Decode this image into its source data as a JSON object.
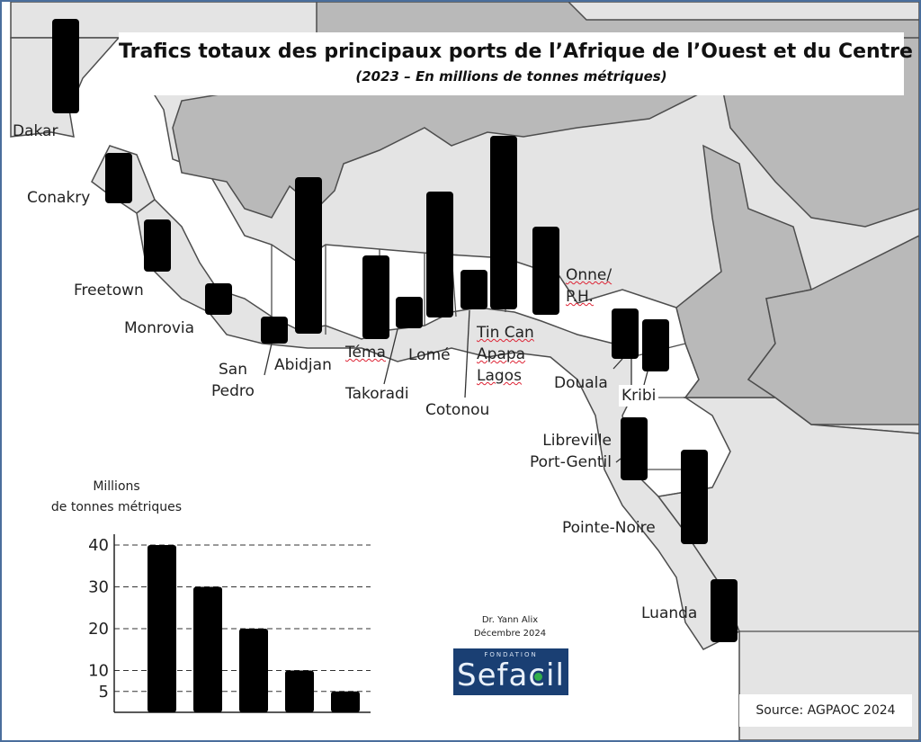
{
  "chart_data": {
    "type": "bar",
    "title": "Trafics totaux des principaux ports de l’Afrique de l’Ouest et du Centre",
    "subtitle": "(2023 – En millions de tonnes métriques)",
    "ports": [
      {
        "label": "Dakar",
        "value": 22.5
      },
      {
        "label": "Conakry",
        "value": 12
      },
      {
        "label": "Freetown",
        "value": 12.5
      },
      {
        "label": "Monrovia",
        "value": 7.5
      },
      {
        "label": "San\nPedro",
        "value": 6.5
      },
      {
        "label": "Abidjan",
        "value": 37.5
      },
      {
        "label": "Téma",
        "value": 20
      },
      {
        "label": "Takoradi",
        "value": 7.5
      },
      {
        "label": "Lomé",
        "value": 30
      },
      {
        "label": "Cotonou",
        "value": 9.5
      },
      {
        "label": "Tin Can\nApapa\nLagos",
        "value": 41.5
      },
      {
        "label": "Onne/\nP.H.",
        "value": 21
      },
      {
        "label": "Douala",
        "value": 12
      },
      {
        "label": "Kribi",
        "value": 12.5
      },
      {
        "label": "Libreville\nPort-Gentil",
        "value": 15
      },
      {
        "label": "Pointe-Noire",
        "value": 22.5
      },
      {
        "label": "Luanda",
        "value": 15
      }
    ],
    "legend_scale": {
      "ylabel": "Millions\nde tonnes métriques",
      "ticks": [
        5,
        10,
        20,
        30,
        40
      ],
      "bars": [
        40,
        30,
        20,
        10,
        5
      ],
      "grid": "dashed"
    }
  },
  "credit": {
    "author": "Dr. Yann Alix",
    "date": "Décembre 2024"
  },
  "logo": {
    "top_text": "FONDATION",
    "name": "Sefacil"
  },
  "source": "Source: AGPAOC 2024",
  "colors": {
    "ocean": "#ffffff",
    "land_light": "#e4e4e4",
    "land_dark": "#b9b9b9",
    "border": "#4d4d4d",
    "frame": "#4a6e9c",
    "bar": "#000000",
    "logo_bg": "#1a3f73",
    "logo_dot": "#32b04a"
  }
}
